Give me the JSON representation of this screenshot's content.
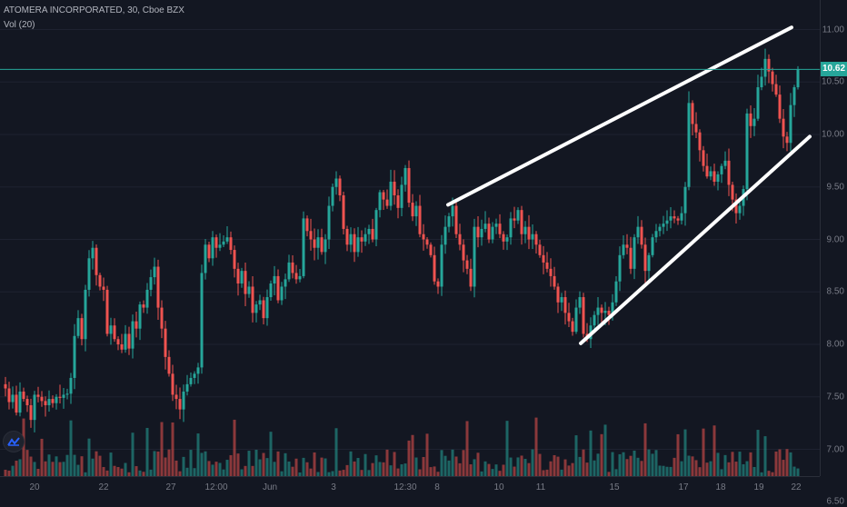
{
  "legend": {
    "symbol": "ATOMERA INCORPORATED, 30, Cboe BZX",
    "indicator": "Vol (20)"
  },
  "current_price_label": "10.62",
  "price_ticks": [
    "11.00",
    "10.50",
    "10.00",
    "9.50",
    "9.00",
    "8.50",
    "8.00",
    "7.50",
    "7.00",
    "6.50"
  ],
  "time_ticks": [
    "20",
    "22",
    "27",
    "12:00",
    "Jun",
    "3",
    "12:30",
    "8",
    "10",
    "11",
    "15",
    "17",
    "18",
    "19",
    "22"
  ],
  "colors": {
    "background": "#131722",
    "up": "#26a69a",
    "down": "#ef5350",
    "grid": "#1e2230",
    "trendline": "#ffffff",
    "price_line": "#26a69a"
  },
  "icons": {
    "logo": "tradingview-logo-icon"
  },
  "chart_data": {
    "type": "candlestick",
    "title": "ATOMERA INCORPORATED, 30, Cboe BZX",
    "ylim": [
      6.5,
      11.15
    ],
    "current_price": 10.62,
    "price_series": [
      [
        0,
        7.62
      ],
      [
        4,
        7.58
      ],
      [
        8,
        7.45
      ],
      [
        12,
        7.52
      ],
      [
        16,
        7.35
      ],
      [
        20,
        7.55
      ],
      [
        24,
        7.48
      ],
      [
        28,
        7.42
      ],
      [
        32,
        7.28
      ],
      [
        36,
        7.52
      ],
      [
        40,
        7.5
      ],
      [
        44,
        7.46
      ],
      [
        48,
        7.42
      ],
      [
        52,
        7.48
      ],
      [
        56,
        7.44
      ],
      [
        60,
        7.5
      ],
      [
        64,
        7.49
      ],
      [
        68,
        7.52
      ],
      [
        72,
        7.53
      ],
      [
        76,
        7.68
      ],
      [
        80,
        8.08
      ],
      [
        84,
        8.25
      ],
      [
        88,
        8.05
      ],
      [
        92,
        8.52
      ],
      [
        96,
        8.82
      ],
      [
        100,
        8.92
      ],
      [
        104,
        8.66
      ],
      [
        108,
        8.55
      ],
      [
        112,
        8.52
      ],
      [
        116,
        8.1
      ],
      [
        120,
        8.18
      ],
      [
        124,
        8.05
      ],
      [
        128,
        8.0
      ],
      [
        132,
        7.95
      ],
      [
        136,
        8.1
      ],
      [
        140,
        7.96
      ],
      [
        144,
        8.22
      ],
      [
        148,
        8.15
      ],
      [
        152,
        8.38
      ],
      [
        156,
        8.35
      ],
      [
        160,
        8.52
      ],
      [
        164,
        8.64
      ],
      [
        168,
        8.74
      ],
      [
        172,
        8.35
      ],
      [
        176,
        8.15
      ],
      [
        180,
        7.88
      ],
      [
        184,
        7.72
      ],
      [
        188,
        7.52
      ],
      [
        192,
        7.48
      ],
      [
        196,
        7.38
      ],
      [
        200,
        7.55
      ],
      [
        204,
        7.62
      ],
      [
        208,
        7.68
      ],
      [
        212,
        7.72
      ],
      [
        216,
        7.78
      ],
      [
        220,
        8.68
      ],
      [
        224,
        8.95
      ],
      [
        228,
        8.82
      ],
      [
        232,
        9.02
      ],
      [
        236,
        8.92
      ],
      [
        240,
        8.95
      ],
      [
        244,
        8.98
      ],
      [
        248,
        9.02
      ],
      [
        252,
        8.9
      ],
      [
        256,
        8.72
      ],
      [
        260,
        8.58
      ],
      [
        264,
        8.7
      ],
      [
        268,
        8.48
      ],
      [
        272,
        8.55
      ],
      [
        276,
        8.3
      ],
      [
        280,
        8.38
      ],
      [
        284,
        8.42
      ],
      [
        288,
        8.25
      ],
      [
        292,
        8.45
      ],
      [
        296,
        8.58
      ],
      [
        300,
        8.65
      ],
      [
        304,
        8.42
      ],
      [
        308,
        8.55
      ],
      [
        312,
        8.62
      ],
      [
        316,
        8.78
      ],
      [
        320,
        8.68
      ],
      [
        324,
        8.62
      ],
      [
        328,
        8.65
      ],
      [
        332,
        9.2
      ],
      [
        336,
        9.08
      ],
      [
        340,
        9.0
      ],
      [
        344,
        8.92
      ],
      [
        348,
        9.02
      ],
      [
        352,
        8.88
      ],
      [
        356,
        9.0
      ],
      [
        360,
        9.32
      ],
      [
        364,
        9.5
      ],
      [
        368,
        9.58
      ],
      [
        372,
        9.42
      ],
      [
        376,
        9.1
      ],
      [
        380,
        8.95
      ],
      [
        384,
        9.05
      ],
      [
        388,
        8.88
      ],
      [
        392,
        9.02
      ],
      [
        396,
        8.98
      ],
      [
        400,
        9.05
      ],
      [
        404,
        9.1
      ],
      [
        408,
        9.0
      ],
      [
        412,
        9.28
      ],
      [
        416,
        9.45
      ],
      [
        420,
        9.38
      ],
      [
        424,
        9.32
      ],
      [
        428,
        9.55
      ],
      [
        432,
        9.42
      ],
      [
        436,
        9.3
      ],
      [
        440,
        9.52
      ],
      [
        444,
        9.68
      ],
      [
        448,
        9.35
      ],
      [
        452,
        9.22
      ],
      [
        456,
        9.32
      ],
      [
        460,
        9.05
      ],
      [
        464,
        9.0
      ],
      [
        468,
        8.95
      ],
      [
        472,
        8.85
      ],
      [
        476,
        8.6
      ],
      [
        480,
        8.55
      ],
      [
        484,
        8.95
      ],
      [
        488,
        9.12
      ],
      [
        492,
        9.22
      ],
      [
        496,
        9.32
      ],
      [
        500,
        9.05
      ],
      [
        504,
        8.95
      ],
      [
        508,
        8.8
      ],
      [
        512,
        8.72
      ],
      [
        516,
        8.55
      ],
      [
        520,
        9.12
      ],
      [
        524,
        9.02
      ],
      [
        528,
        9.1
      ],
      [
        532,
        9.15
      ],
      [
        536,
        9.0
      ],
      [
        540,
        9.12
      ],
      [
        544,
        9.15
      ],
      [
        548,
        9.05
      ],
      [
        552,
        8.98
      ],
      [
        556,
        9.02
      ],
      [
        560,
        9.2
      ],
      [
        564,
        9.18
      ],
      [
        568,
        9.28
      ],
      [
        572,
        9.05
      ],
      [
        576,
        9.12
      ],
      [
        580,
        9.0
      ],
      [
        584,
        9.05
      ],
      [
        588,
        8.95
      ],
      [
        592,
        8.85
      ],
      [
        596,
        8.78
      ],
      [
        600,
        8.72
      ],
      [
        604,
        8.65
      ],
      [
        608,
        8.55
      ],
      [
        612,
        8.4
      ],
      [
        616,
        8.45
      ],
      [
        620,
        8.3
      ],
      [
        624,
        8.22
      ],
      [
        628,
        8.12
      ],
      [
        632,
        8.35
      ],
      [
        636,
        8.45
      ],
      [
        640,
        8.1
      ],
      [
        644,
        8.05
      ],
      [
        648,
        8.18
      ],
      [
        652,
        8.28
      ],
      [
        656,
        8.35
      ],
      [
        660,
        8.3
      ],
      [
        664,
        8.32
      ],
      [
        668,
        8.28
      ],
      [
        672,
        8.4
      ],
      [
        676,
        8.6
      ],
      [
        680,
        8.85
      ],
      [
        684,
        8.95
      ],
      [
        688,
        8.92
      ],
      [
        692,
        8.72
      ],
      [
        696,
        9.02
      ],
      [
        700,
        9.12
      ],
      [
        704,
        8.95
      ],
      [
        708,
        8.7
      ],
      [
        712,
        8.85
      ],
      [
        716,
        9.02
      ],
      [
        720,
        9.08
      ],
      [
        724,
        9.12
      ],
      [
        728,
        9.15
      ],
      [
        732,
        9.18
      ],
      [
        736,
        9.22
      ],
      [
        740,
        9.2
      ],
      [
        744,
        9.18
      ],
      [
        748,
        9.25
      ],
      [
        752,
        9.5
      ],
      [
        756,
        10.3
      ],
      [
        760,
        10.1
      ],
      [
        764,
        10.02
      ],
      [
        768,
        9.85
      ],
      [
        772,
        9.7
      ],
      [
        776,
        9.6
      ],
      [
        780,
        9.65
      ],
      [
        784,
        9.55
      ],
      [
        788,
        9.62
      ],
      [
        792,
        9.7
      ],
      [
        796,
        9.75
      ],
      [
        800,
        9.52
      ],
      [
        804,
        9.38
      ],
      [
        808,
        9.25
      ],
      [
        812,
        9.32
      ],
      [
        816,
        9.48
      ],
      [
        820,
        10.2
      ],
      [
        824,
        10.08
      ],
      [
        828,
        10.15
      ],
      [
        832,
        10.45
      ],
      [
        836,
        10.55
      ],
      [
        840,
        10.72
      ],
      [
        844,
        10.6
      ],
      [
        848,
        10.48
      ],
      [
        852,
        10.38
      ],
      [
        856,
        10.15
      ],
      [
        860,
        9.98
      ],
      [
        864,
        9.92
      ],
      [
        868,
        10.28
      ],
      [
        872,
        10.45
      ],
      [
        876,
        10.62
      ]
    ],
    "trendlines": [
      {
        "name": "upper",
        "from": [
          493,
          9.33
        ],
        "to": [
          871,
          11.02
        ]
      },
      {
        "name": "lower",
        "from": [
          639,
          8.01
        ],
        "to": [
          891,
          9.98
        ]
      }
    ],
    "volume_spikes": [
      [
        188,
        1.0
      ],
      [
        483,
        1.0
      ],
      [
        875,
        1.0
      ]
    ]
  }
}
